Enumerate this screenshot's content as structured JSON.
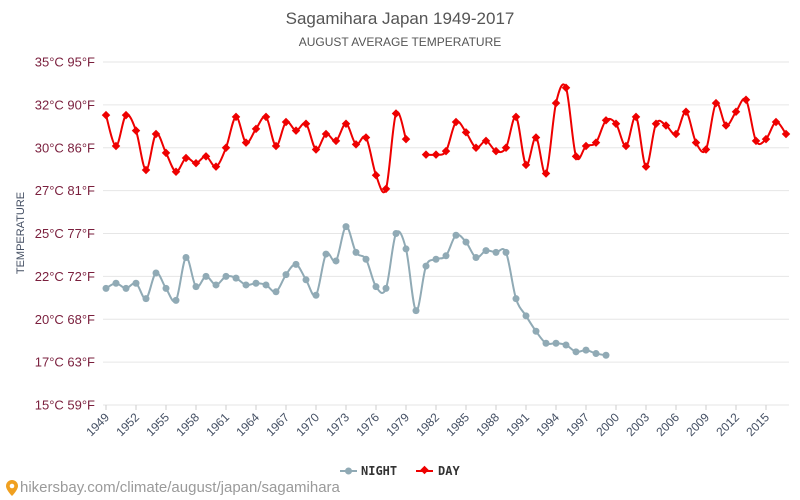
{
  "chart_data": {
    "type": "line",
    "title": "Sagamihara Japan 1949-2017",
    "subtitle": "AUGUST AVERAGE TEMPERATURE",
    "ylabel": "TEMPERATURE",
    "ylim": [
      15,
      35
    ],
    "yticks": [
      {
        "value": 15,
        "label": "15°C 59°F"
      },
      {
        "value": 17.5,
        "label": "17°C 63°F"
      },
      {
        "value": 20,
        "label": "20°C 68°F"
      },
      {
        "value": 22.5,
        "label": "22°C 72°F"
      },
      {
        "value": 25,
        "label": "25°C 77°F"
      },
      {
        "value": 27.5,
        "label": "27°C 81°F"
      },
      {
        "value": 30,
        "label": "30°C 86°F"
      },
      {
        "value": 32.5,
        "label": "32°C 90°F"
      },
      {
        "value": 35,
        "label": "35°C 95°F"
      }
    ],
    "xlim": [
      1948.7,
      2017.3
    ],
    "xticks": [
      1949,
      1952,
      1955,
      1958,
      1961,
      1964,
      1967,
      1970,
      1973,
      1976,
      1979,
      1982,
      1985,
      1988,
      1991,
      1994,
      1997,
      2000,
      2003,
      2006,
      2009,
      2012,
      2015
    ],
    "legend_position": "bottom",
    "grid": true,
    "series": [
      {
        "name": "NIGHT",
        "color": "#90aab5",
        "marker": "circle",
        "x": [
          1949,
          1950,
          1951,
          1952,
          1953,
          1954,
          1955,
          1956,
          1957,
          1958,
          1959,
          1960,
          1961,
          1962,
          1963,
          1964,
          1965,
          1966,
          1967,
          1968,
          1969,
          1970,
          1971,
          1972,
          1973,
          1974,
          1975,
          1976,
          1977,
          1978,
          1979,
          1980,
          1981,
          1982,
          1983,
          1984,
          1985,
          1986,
          1987,
          1988,
          1989,
          1990,
          1991,
          1992,
          1993,
          1994,
          1995,
          1996,
          1997,
          1998,
          1999
        ],
        "y": [
          21.8,
          22.1,
          21.8,
          22.1,
          21.2,
          22.7,
          21.8,
          21.1,
          23.6,
          21.9,
          22.5,
          22.0,
          22.5,
          22.4,
          22.0,
          22.1,
          22.0,
          21.6,
          22.6,
          23.2,
          22.3,
          21.4,
          23.8,
          23.4,
          25.4,
          23.9,
          23.5,
          21.9,
          21.8,
          25.0,
          24.1,
          20.5,
          23.1,
          23.5,
          23.7,
          24.9,
          24.5,
          23.6,
          24.0,
          23.9,
          23.9,
          21.2,
          20.2,
          19.3,
          18.6,
          18.6,
          18.5,
          18.1,
          18.2,
          18.0,
          17.9
        ]
      },
      {
        "name": "DAY",
        "color": "#ee0000",
        "marker": "diamond",
        "x": [
          1949,
          1950,
          1951,
          1952,
          1953,
          1954,
          1955,
          1956,
          1957,
          1958,
          1959,
          1960,
          1961,
          1962,
          1963,
          1964,
          1965,
          1966,
          1967,
          1968,
          1969,
          1970,
          1971,
          1972,
          1973,
          1974,
          1975,
          1976,
          1977,
          1978,
          1979,
          1981,
          1982,
          1983,
          1984,
          1985,
          1986,
          1987,
          1988,
          1989,
          1990,
          1991,
          1992,
          1993,
          1994,
          1995,
          1996,
          1997,
          1998,
          1999,
          2000,
          2001,
          2002,
          2003,
          2004,
          2005,
          2006,
          2007,
          2008,
          2009,
          2010,
          2011,
          2012,
          2013,
          2014,
          2015,
          2016,
          2017
        ],
        "y": [
          31.9,
          30.1,
          31.9,
          31.0,
          28.7,
          30.8,
          29.7,
          28.6,
          29.4,
          29.1,
          29.5,
          28.9,
          30.0,
          31.8,
          30.3,
          31.1,
          31.8,
          30.1,
          31.5,
          31.0,
          31.4,
          29.9,
          30.8,
          30.4,
          31.4,
          30.2,
          30.6,
          28.4,
          27.6,
          32.0,
          30.5,
          29.6,
          29.6,
          29.8,
          31.5,
          30.9,
          30.0,
          30.4,
          29.8,
          30.0,
          31.8,
          29.0,
          30.6,
          28.5,
          32.6,
          33.5,
          29.5,
          30.1,
          30.3,
          31.6,
          31.4,
          30.1,
          31.8,
          28.9,
          31.4,
          31.3,
          30.8,
          32.1,
          30.3,
          29.9,
          32.6,
          31.3,
          32.1,
          32.8,
          30.4,
          30.5,
          31.5,
          30.8
        ]
      }
    ]
  },
  "legend": {
    "night_label": "NIGHT",
    "day_label": "DAY"
  },
  "source_text": "hikersbay.com/climate/august/japan/sagamihara"
}
